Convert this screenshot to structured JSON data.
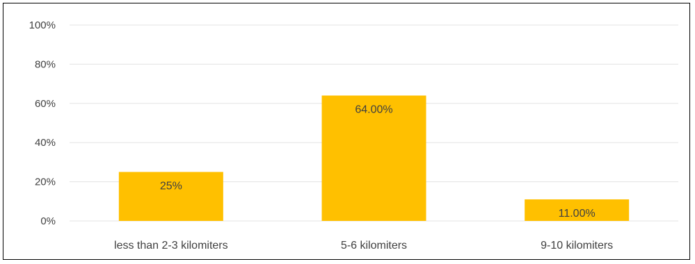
{
  "chart_data": {
    "type": "bar",
    "categories": [
      "less than 2-3  kilomiters",
      "5-6 kilomiters",
      "9-10 kilomiters"
    ],
    "values": [
      25,
      64,
      11
    ],
    "data_labels": [
      "25%",
      "64.00%",
      "11.00%"
    ],
    "ylim": [
      0,
      100
    ],
    "yticks": [
      0,
      20,
      40,
      60,
      80,
      100
    ],
    "ytick_labels": [
      "0%",
      "20%",
      "40%",
      "60%",
      "80%",
      "100%"
    ],
    "grid": true,
    "legend": "none",
    "colors": {
      "bar": "#FFC000",
      "grid": "#E3E3E3",
      "text": "#404040",
      "border": "#000000"
    }
  }
}
